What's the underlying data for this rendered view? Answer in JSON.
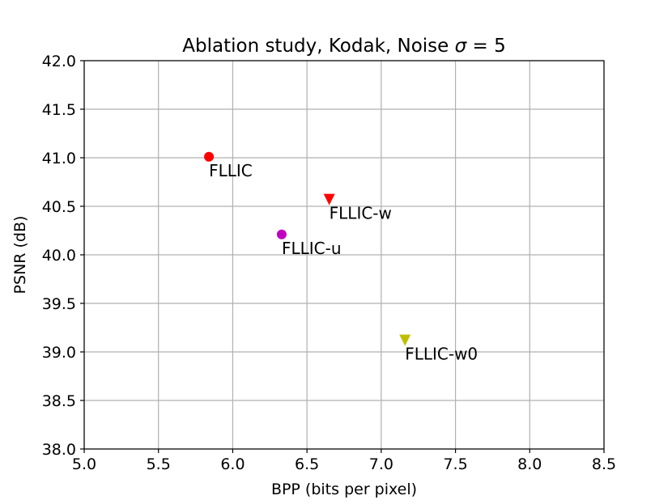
{
  "chart_data": {
    "type": "scatter",
    "title_prefix": "Ablation study, Kodak, Noise ",
    "title_sigma": "σ",
    "title_suffix": " = 5",
    "xlabel": "BPP (bits per pixel)",
    "ylabel": "PSNR (dB)",
    "xlim": [
      5.0,
      8.5
    ],
    "ylim": [
      38.0,
      42.0
    ],
    "xticks": [
      "5.0",
      "5.5",
      "6.0",
      "6.5",
      "7.0",
      "7.5",
      "8.0",
      "8.5"
    ],
    "yticks": [
      "38.0",
      "38.5",
      "39.0",
      "39.5",
      "40.0",
      "40.5",
      "41.0",
      "41.5",
      "42.0"
    ],
    "grid": true,
    "points": [
      {
        "label": "FLLIC",
        "x": 5.84,
        "y": 41.01,
        "marker": "circle",
        "color": "#ff0000"
      },
      {
        "label": "FLLIC-w",
        "x": 6.65,
        "y": 40.57,
        "marker": "triangle",
        "color": "#ff0000"
      },
      {
        "label": "FLLIC-u",
        "x": 6.33,
        "y": 40.21,
        "marker": "circle",
        "color": "#bf00bf"
      },
      {
        "label": "FLLIC-w0",
        "x": 7.16,
        "y": 39.12,
        "marker": "triangle",
        "color": "#bfbf00"
      }
    ]
  }
}
